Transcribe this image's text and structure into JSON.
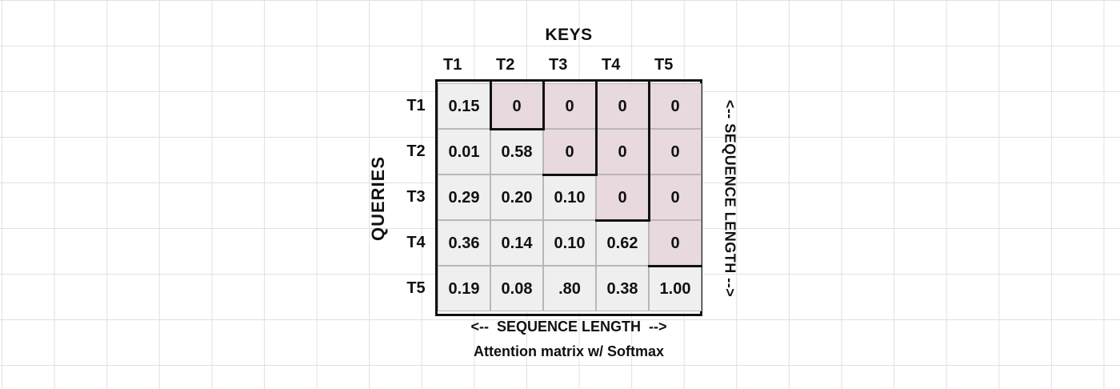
{
  "keys_title": "KEYS",
  "queries_title": "QUERIES",
  "columns": [
    "T1",
    "T2",
    "T3",
    "T4",
    "T5"
  ],
  "rows": [
    "T1",
    "T2",
    "T3",
    "T4",
    "T5"
  ],
  "matrix": [
    [
      "0.15",
      "0",
      "0",
      "0",
      "0"
    ],
    [
      "0.01",
      "0.58",
      "0",
      "0",
      "0"
    ],
    [
      "0.29",
      "0.20",
      "0.10",
      "0",
      "0"
    ],
    [
      "0.36",
      "0.14",
      "0.10",
      "0.62",
      "0"
    ],
    [
      "0.19",
      "0.08",
      ".80",
      "0.38",
      "1.00"
    ]
  ],
  "sequence_length_bottom": "<--  SEQUENCE LENGTH  -->",
  "sequence_length_right": "<--  SEQUENCE LENGTH  -->",
  "caption": "Attention matrix w/ Softmax",
  "colors": {
    "lower_cell": "#efefef",
    "masked_cell": "#e8d9de",
    "border": "#111111",
    "grid": "#e4dfe2"
  }
}
